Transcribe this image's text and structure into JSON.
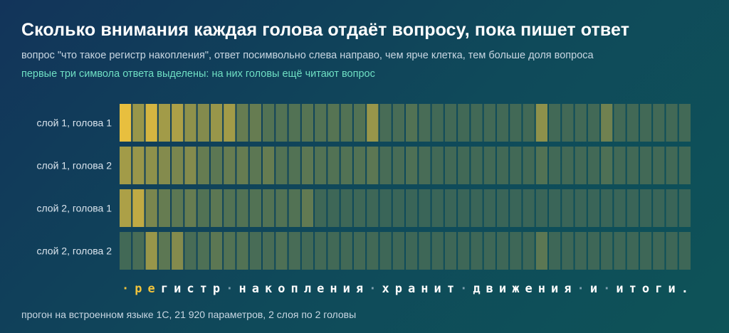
{
  "title": "Сколько внимания каждая голова отдаёт вопросу, пока пишет ответ",
  "subtitle": "вопрос \"что такое регистр накопления\", ответ посимвольно слева направо, чем ярче клетка, тем больше доля вопроса",
  "note": "первые три символа ответа выделены: на них головы ещё читают вопрос",
  "footer": "прогон на встроенном языке 1С, 21 920 параметров, 2 слоя по 2 головы",
  "colors": {
    "cell_low": "#2a5d5a",
    "cell_high": "#f2c43c",
    "token": "#ffffff",
    "token_highlight": "#f2c43c",
    "separator": "#7fa0b0"
  },
  "chart_data": {
    "type": "heatmap",
    "x_tokens": [
      "·",
      "р",
      "е",
      "г",
      "и",
      "с",
      "т",
      "р",
      "·",
      "н",
      "а",
      "к",
      "о",
      "п",
      "л",
      "е",
      "н",
      "и",
      "я",
      "·",
      "х",
      "р",
      "а",
      "н",
      "и",
      "т",
      "·",
      "д",
      "в",
      "и",
      "ж",
      "е",
      "н",
      "и",
      "я",
      "·",
      "и",
      "·",
      "и",
      "т",
      "о",
      "г",
      "и",
      "."
    ],
    "highlighted_token_count": 3,
    "rows": [
      {
        "label": "слой 1, голова 1",
        "values": [
          0.95,
          0.55,
          0.85,
          0.6,
          0.65,
          0.5,
          0.45,
          0.55,
          0.6,
          0.3,
          0.3,
          0.2,
          0.2,
          0.2,
          0.22,
          0.2,
          0.22,
          0.2,
          0.2,
          0.55,
          0.15,
          0.15,
          0.2,
          0.15,
          0.12,
          0.12,
          0.12,
          0.12,
          0.12,
          0.12,
          0.12,
          0.12,
          0.5,
          0.12,
          0.12,
          0.12,
          0.12,
          0.35,
          0.12,
          0.12,
          0.12,
          0.12,
          0.12,
          0.12
        ]
      },
      {
        "label": "слой 1, голова 2",
        "values": [
          0.6,
          0.55,
          0.5,
          0.45,
          0.4,
          0.45,
          0.3,
          0.25,
          0.3,
          0.3,
          0.25,
          0.3,
          0.2,
          0.2,
          0.25,
          0.2,
          0.2,
          0.2,
          0.2,
          0.25,
          0.15,
          0.15,
          0.18,
          0.15,
          0.12,
          0.12,
          0.12,
          0.12,
          0.12,
          0.12,
          0.12,
          0.12,
          0.2,
          0.12,
          0.12,
          0.12,
          0.12,
          0.18,
          0.12,
          0.12,
          0.12,
          0.12,
          0.12,
          0.12
        ]
      },
      {
        "label": "слой 2, голова 1",
        "values": [
          0.65,
          0.75,
          0.4,
          0.3,
          0.25,
          0.3,
          0.2,
          0.25,
          0.2,
          0.2,
          0.2,
          0.2,
          0.2,
          0.2,
          0.28,
          0.1,
          0.1,
          0.1,
          0.1,
          0.1,
          0.08,
          0.08,
          0.08,
          0.08,
          0.08,
          0.08,
          0.08,
          0.08,
          0.08,
          0.08,
          0.08,
          0.08,
          0.08,
          0.08,
          0.08,
          0.08,
          0.08,
          0.08,
          0.08,
          0.08,
          0.08,
          0.08,
          0.08,
          0.08
        ]
      },
      {
        "label": "слой 2, голова 2",
        "values": [
          0.12,
          0.15,
          0.55,
          0.25,
          0.45,
          0.15,
          0.18,
          0.25,
          0.2,
          0.2,
          0.15,
          0.15,
          0.18,
          0.15,
          0.12,
          0.12,
          0.12,
          0.12,
          0.12,
          0.12,
          0.1,
          0.1,
          0.1,
          0.1,
          0.1,
          0.1,
          0.1,
          0.1,
          0.1,
          0.1,
          0.1,
          0.1,
          0.25,
          0.1,
          0.1,
          0.1,
          0.1,
          0.1,
          0.1,
          0.1,
          0.1,
          0.1,
          0.1,
          0.1
        ]
      }
    ]
  }
}
